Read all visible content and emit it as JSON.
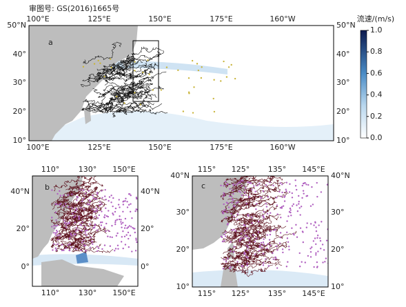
{
  "approval": "审图号: GS(2016)1665号",
  "panels": [
    {
      "label": "a",
      "top_ticks": [
        "100°E",
        "125°E",
        "150°E",
        "175°E",
        "160°W"
      ],
      "bottom_ticks": [
        "100°E",
        "125°E",
        "150°E",
        "175°E",
        "160°W"
      ],
      "left_ticks": [
        "50°N",
        "40°",
        "30°",
        "20°",
        "10°"
      ],
      "right_ticks": [
        "50°N",
        "40°",
        "30°",
        "20°",
        "10°"
      ]
    },
    {
      "label": "b",
      "top_ticks": [
        "110°",
        "130°",
        "150°E"
      ],
      "bottom_ticks": [
        "110°",
        "130°",
        "150°E"
      ],
      "left_ticks": [
        "40°N",
        "20°",
        "0°"
      ],
      "right_ticks": [
        "40°N",
        "20°",
        "0°"
      ]
    },
    {
      "label": "c",
      "top_ticks": [
        "115°",
        "125°",
        "135°",
        "145°E"
      ],
      "bottom_ticks": [
        "115°",
        "125°",
        "135°",
        "145°E"
      ],
      "left_ticks": [
        "40°N",
        "30°",
        "20°",
        "10°"
      ],
      "right_ticks": [
        "40°N",
        "30°",
        "20°",
        "10°"
      ]
    }
  ],
  "colorbar": {
    "title": "流速/(m/s)",
    "ticks": [
      "1.0",
      "0.8",
      "0.6",
      "0.4",
      "0.2",
      "0.0"
    ]
  }
}
